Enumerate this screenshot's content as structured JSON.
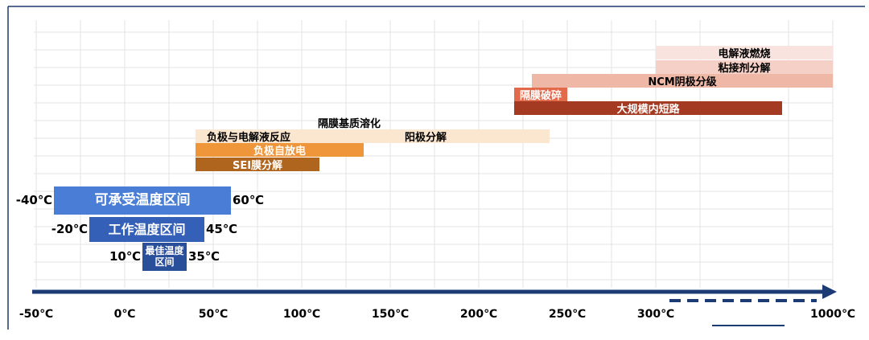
{
  "chart_data": {
    "type": "range",
    "xticks": [
      {
        "value": -50,
        "label": "-50℃"
      },
      {
        "value": 0,
        "label": "0℃"
      },
      {
        "value": 50,
        "label": "50℃"
      },
      {
        "value": 100,
        "label": "100℃"
      },
      {
        "value": 150,
        "label": "150℃"
      },
      {
        "value": 200,
        "label": "200℃"
      },
      {
        "value": 250,
        "label": "250℃"
      },
      {
        "value": 300,
        "label": "300℃"
      },
      {
        "value": 1000,
        "label": "1000℃"
      }
    ],
    "xlim": [
      -50,
      1000
    ],
    "axis_break": true,
    "bars": [
      {
        "name": "电解液燃烧",
        "values": [
          300,
          1000
        ],
        "color": "#f8e3de",
        "label_color": "#000000"
      },
      {
        "name": "粘接剂分解",
        "values": [
          300,
          1000
        ],
        "color": "#f4d0c6",
        "label_color": "#000000"
      },
      {
        "name": "NCM阴极分级",
        "values": [
          230,
          1000
        ],
        "color": "#efb7a5",
        "label_color": "#000000"
      },
      {
        "name": "隔膜破碎",
        "values": [
          220,
          250
        ],
        "color": "#e2694a",
        "label_color": "#ffffff"
      },
      {
        "name": "大规模内短路",
        "values": [
          220,
          800
        ],
        "color": "#a53a22",
        "label_color": "#ffffff"
      },
      {
        "name": "负极与电解液反应",
        "values": [
          40,
          100
        ],
        "color": "#fbe6cf",
        "label_color": "#000000"
      },
      {
        "name": "阳极分解",
        "values": [
          100,
          240
        ],
        "color": "#fbe6cf",
        "label_color": "#000000"
      },
      {
        "name": "负极自放电",
        "values": [
          40,
          135
        ],
        "color": "#f0963a",
        "label_color": "#ffffff"
      },
      {
        "name": "SEI膜分解",
        "values": [
          40,
          110
        ],
        "color": "#b0651f",
        "label_color": "#ffffff"
      }
    ],
    "annotations": [
      "隔膜基质溶化"
    ],
    "zones": [
      {
        "name": "可承受温度区间",
        "values": [
          -40,
          60
        ],
        "value_labels": [
          "-40℃",
          "60℃"
        ],
        "color": "#4a7ed6"
      },
      {
        "name": "工作温度区间",
        "values": [
          -20,
          45
        ],
        "value_labels": [
          "-20℃",
          "45℃"
        ],
        "color": "#3560b8"
      },
      {
        "name": "最佳温度区间",
        "values": [
          10,
          35
        ],
        "value_labels": [
          "10℃",
          "35℃"
        ],
        "color": "#2a4f9a"
      }
    ]
  }
}
